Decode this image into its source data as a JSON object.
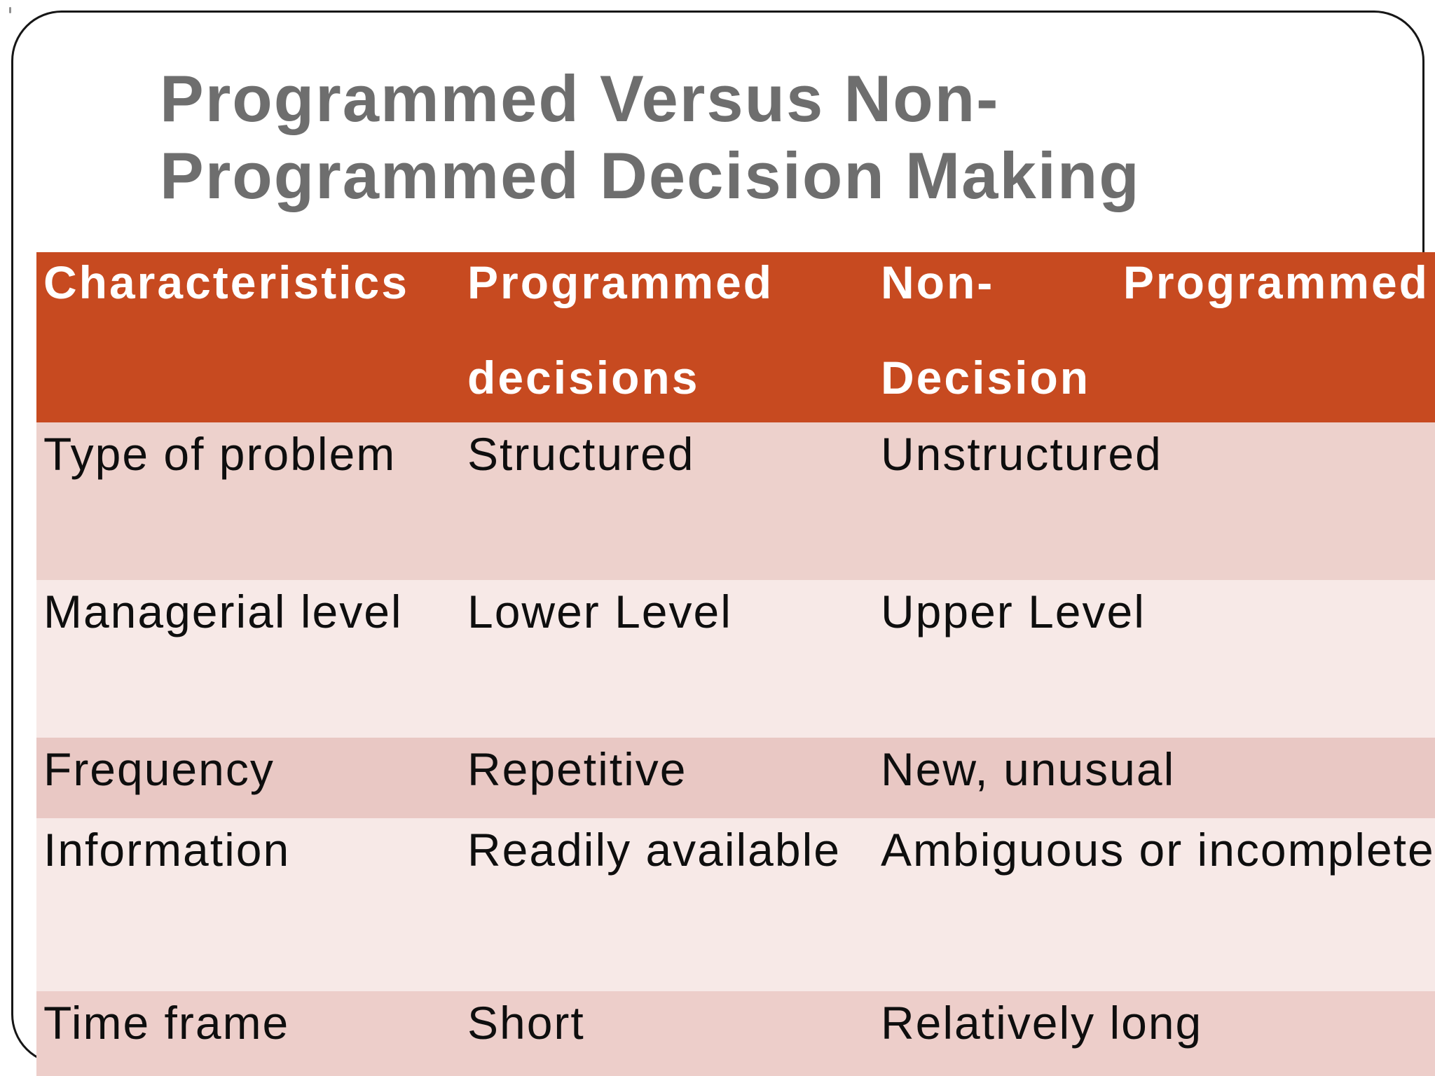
{
  "slide": {
    "title_line1": "Programmed Versus Non-",
    "title_line2": "Programmed Decision Making",
    "colors": {
      "title_text": "#6e6e6e",
      "header_bg": "#c74a20",
      "header_text": "#ffffff",
      "body_text": "#0e0e0e",
      "row_dark_pink": "#edd1cc",
      "row_light_pink": "#f7e9e7",
      "frame_border": "#161616"
    }
  },
  "table": {
    "header": {
      "col1": "Characteristics",
      "col2_line1": "Programmed",
      "col2_line2": "decisions",
      "col3_line1a": "Non-",
      "col3_line1b": "Programmed",
      "col3_line2": "Decision",
      "bg": "#c74a20"
    },
    "rows": [
      {
        "characteristic": "Type of problem",
        "programmed": "Structured",
        "non_programmed": "Unstructured",
        "bg": "#edd1cc"
      },
      {
        "characteristic": "Managerial level",
        "programmed": "Lower Level",
        "non_programmed": "Upper Level",
        "bg": "#f7e9e7"
      },
      {
        "characteristic": "Frequency",
        "programmed": "Repetitive",
        "non_programmed": "New, unusual",
        "bg": "#e9c8c4"
      },
      {
        "characteristic": "Information",
        "programmed": "Readily available",
        "non_programmed": "Ambiguous or incomplete",
        "bg": "#f7e9e7"
      },
      {
        "characteristic": "Time frame",
        "programmed": "Short",
        "non_programmed": "Relatively long",
        "bg": "#edceca"
      }
    ]
  }
}
